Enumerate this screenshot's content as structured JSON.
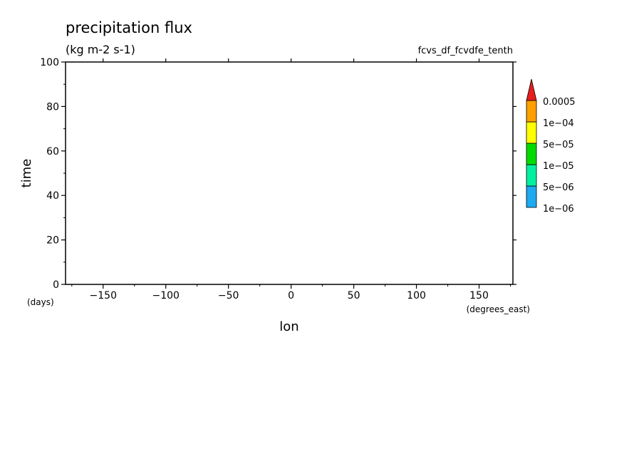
{
  "chart_data": {
    "type": "heatmap",
    "title": "precipitation flux",
    "subtitle": "(kg m-2 s-1)",
    "annotation": "fcvs_df_fcvdfe_tenth",
    "xlabel": "lon",
    "ylabel": "time",
    "x_units": "(degrees_east)",
    "y_units": "(days)",
    "xlim": [
      -180,
      177
    ],
    "ylim": [
      0,
      100
    ],
    "x_ticks": [
      -150,
      -100,
      -50,
      0,
      50,
      100,
      150
    ],
    "y_ticks": [
      0,
      20,
      40,
      60,
      80,
      100
    ],
    "colorbar": {
      "levels": [
        "1e-06",
        "5e-06",
        "1e-05",
        "5e-05",
        "1e-04",
        "0.0005"
      ],
      "colors": [
        "#ffffff",
        "#1eaaf0",
        "#00f0a0",
        "#00dc00",
        "#ffff00",
        "#ffa000",
        "#e61e1e"
      ],
      "extend": "max"
    }
  }
}
